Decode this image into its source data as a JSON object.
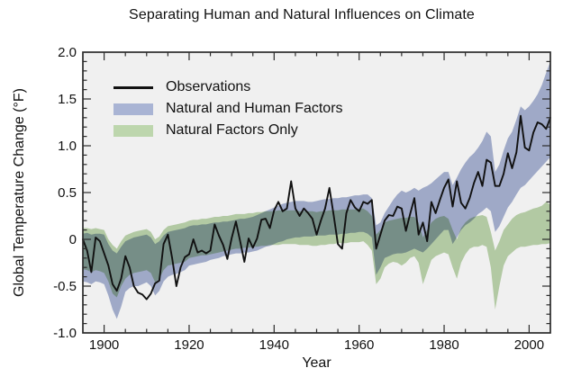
{
  "chart_data": {
    "type": "area",
    "title": "Separating Human and Natural Influences on Climate",
    "xlabel": "Year",
    "ylabel": "Global Temperature Change (°F)",
    "xlim": [
      1895,
      2005
    ],
    "ylim": [
      -1.0,
      2.0
    ],
    "grid": false,
    "legend_position": "upper-left-inside",
    "x_major_ticks": [
      1900,
      1920,
      1940,
      1960,
      1980,
      2000
    ],
    "x_tick_labels": [
      "1900",
      "1920",
      "1940",
      "1960",
      "1980",
      "2000"
    ],
    "x_minor_step": 5,
    "y_major_ticks": [
      2.0,
      1.5,
      1.0,
      0.5,
      0,
      -0.5,
      -1.0
    ],
    "y_tick_labels": [
      "2.0",
      "1.5",
      "1.0",
      "0.5",
      "0",
      "-0.5",
      "-1.0"
    ],
    "y_minor_step": 0.1,
    "colors": {
      "observations": "#111111",
      "natural_human_band": "#a9b4d4",
      "natural_band": "#bdd6ad",
      "plot_background": "#f0f0f0",
      "axis": "#2b2b2b"
    },
    "legend": [
      {
        "label": "Observations",
        "type": "line",
        "swatch_color": "#111111"
      },
      {
        "label": "Natural and Human Factors",
        "type": "band",
        "swatch_color": "#a9b4d4"
      },
      {
        "label": "Natural Factors Only",
        "type": "band",
        "swatch_color": "#bdd6ad"
      }
    ],
    "years": [
      1895,
      1896,
      1897,
      1898,
      1899,
      1900,
      1901,
      1902,
      1903,
      1904,
      1905,
      1906,
      1907,
      1908,
      1909,
      1910,
      1911,
      1912,
      1913,
      1914,
      1915,
      1916,
      1917,
      1918,
      1919,
      1920,
      1921,
      1922,
      1923,
      1924,
      1925,
      1926,
      1927,
      1928,
      1929,
      1930,
      1931,
      1932,
      1933,
      1934,
      1935,
      1936,
      1937,
      1938,
      1939,
      1940,
      1941,
      1942,
      1943,
      1944,
      1945,
      1946,
      1947,
      1948,
      1949,
      1950,
      1951,
      1952,
      1953,
      1954,
      1955,
      1956,
      1957,
      1958,
      1959,
      1960,
      1961,
      1962,
      1963,
      1964,
      1965,
      1966,
      1967,
      1968,
      1969,
      1970,
      1971,
      1972,
      1973,
      1974,
      1975,
      1976,
      1977,
      1978,
      1979,
      1980,
      1981,
      1982,
      1983,
      1984,
      1985,
      1986,
      1987,
      1988,
      1989,
      1990,
      1991,
      1992,
      1993,
      1994,
      1995,
      1996,
      1997,
      1998,
      1999,
      2000,
      2001,
      2002,
      2003,
      2004,
      2005
    ],
    "series": [
      {
        "name": "Observations",
        "type": "line",
        "values": [
          0.0,
          -0.12,
          -0.35,
          0.02,
          -0.02,
          -0.15,
          -0.28,
          -0.48,
          -0.55,
          -0.42,
          -0.18,
          -0.3,
          -0.5,
          -0.57,
          -0.59,
          -0.64,
          -0.58,
          -0.47,
          -0.44,
          -0.05,
          0.05,
          -0.2,
          -0.5,
          -0.3,
          -0.19,
          -0.16,
          0.0,
          -0.14,
          -0.12,
          -0.15,
          -0.12,
          0.16,
          0.04,
          -0.06,
          -0.21,
          0.01,
          0.19,
          -0.02,
          -0.24,
          0.01,
          -0.09,
          0.01,
          0.21,
          0.22,
          0.12,
          0.31,
          0.4,
          0.3,
          0.33,
          0.62,
          0.33,
          0.25,
          0.33,
          0.28,
          0.22,
          0.05,
          0.2,
          0.33,
          0.55,
          0.26,
          -0.05,
          -0.1,
          0.28,
          0.42,
          0.34,
          0.3,
          0.4,
          0.38,
          0.42,
          -0.1,
          0.05,
          0.2,
          0.26,
          0.25,
          0.35,
          0.33,
          0.09,
          0.27,
          0.44,
          0.05,
          0.18,
          -0.02,
          0.4,
          0.28,
          0.42,
          0.55,
          0.64,
          0.35,
          0.62,
          0.39,
          0.33,
          0.44,
          0.6,
          0.72,
          0.57,
          0.85,
          0.82,
          0.57,
          0.57,
          0.7,
          0.92,
          0.76,
          0.93,
          1.32,
          0.98,
          0.95,
          1.14,
          1.25,
          1.23,
          1.18,
          1.3
        ]
      },
      {
        "name": "Natural and Human Factors",
        "type": "band",
        "lower": [
          -0.45,
          -0.46,
          -0.48,
          -0.45,
          -0.46,
          -0.48,
          -0.6,
          -0.75,
          -0.85,
          -0.72,
          -0.56,
          -0.52,
          -0.5,
          -0.5,
          -0.48,
          -0.46,
          -0.5,
          -0.6,
          -0.55,
          -0.45,
          -0.4,
          -0.38,
          -0.37,
          -0.35,
          -0.33,
          -0.28,
          -0.27,
          -0.26,
          -0.25,
          -0.24,
          -0.22,
          -0.21,
          -0.2,
          -0.18,
          -0.17,
          -0.16,
          -0.15,
          -0.15,
          -0.14,
          -0.14,
          -0.13,
          -0.12,
          -0.1,
          -0.08,
          -0.07,
          -0.05,
          -0.03,
          -0.02,
          0.0,
          0.01,
          0.02,
          0.02,
          0.03,
          0.03,
          0.03,
          0.04,
          0.04,
          0.04,
          0.05,
          0.05,
          0.05,
          0.06,
          0.06,
          0.07,
          0.07,
          0.08,
          0.08,
          0.06,
          0.02,
          -0.38,
          -0.3,
          -0.2,
          -0.18,
          -0.16,
          -0.15,
          -0.15,
          -0.14,
          -0.12,
          -0.1,
          -0.12,
          -0.14,
          -0.1,
          -0.05,
          0.0,
          0.05,
          0.1,
          0.1,
          -0.05,
          0.02,
          0.1,
          0.15,
          0.18,
          0.22,
          0.27,
          0.3,
          0.34,
          0.3,
          0.08,
          0.14,
          0.24,
          0.34,
          0.4,
          0.48,
          0.55,
          0.58,
          0.63,
          0.68,
          0.73,
          0.78,
          0.83,
          0.88
        ],
        "upper": [
          0.06,
          0.07,
          0.05,
          0.06,
          0.06,
          0.05,
          -0.05,
          -0.12,
          -0.15,
          -0.08,
          -0.02,
          0.0,
          0.02,
          0.03,
          0.04,
          0.05,
          0.02,
          -0.05,
          -0.02,
          0.04,
          0.08,
          0.09,
          0.1,
          0.11,
          0.12,
          0.14,
          0.15,
          0.15,
          0.16,
          0.16,
          0.17,
          0.18,
          0.18,
          0.19,
          0.19,
          0.2,
          0.21,
          0.22,
          0.22,
          0.23,
          0.24,
          0.26,
          0.28,
          0.3,
          0.32,
          0.34,
          0.36,
          0.38,
          0.39,
          0.4,
          0.41,
          0.41,
          0.41,
          0.4,
          0.4,
          0.41,
          0.42,
          0.43,
          0.43,
          0.44,
          0.44,
          0.45,
          0.45,
          0.46,
          0.47,
          0.47,
          0.48,
          0.48,
          0.44,
          0.15,
          0.18,
          0.28,
          0.35,
          0.42,
          0.48,
          0.52,
          0.5,
          0.52,
          0.55,
          0.52,
          0.55,
          0.57,
          0.6,
          0.64,
          0.68,
          0.72,
          0.72,
          0.58,
          0.66,
          0.75,
          0.82,
          0.88,
          0.92,
          0.98,
          1.05,
          1.15,
          1.1,
          0.72,
          0.8,
          0.95,
          1.08,
          1.15,
          1.28,
          1.42,
          1.38,
          1.42,
          1.48,
          1.55,
          1.65,
          1.78,
          1.9
        ]
      },
      {
        "name": "Natural Factors Only",
        "type": "band",
        "lower": [
          -0.32,
          -0.33,
          -0.35,
          -0.33,
          -0.34,
          -0.36,
          -0.45,
          -0.58,
          -0.62,
          -0.5,
          -0.42,
          -0.38,
          -0.36,
          -0.35,
          -0.34,
          -0.33,
          -0.36,
          -0.46,
          -0.42,
          -0.33,
          -0.28,
          -0.27,
          -0.26,
          -0.25,
          -0.24,
          -0.2,
          -0.19,
          -0.18,
          -0.17,
          -0.17,
          -0.16,
          -0.15,
          -0.14,
          -0.13,
          -0.12,
          -0.11,
          -0.1,
          -0.1,
          -0.09,
          -0.09,
          -0.08,
          -0.08,
          -0.07,
          -0.07,
          -0.06,
          -0.06,
          -0.06,
          -0.05,
          -0.05,
          -0.05,
          -0.05,
          -0.06,
          -0.06,
          -0.06,
          -0.07,
          -0.07,
          -0.06,
          -0.06,
          -0.05,
          -0.05,
          -0.04,
          -0.04,
          -0.04,
          -0.03,
          -0.03,
          -0.03,
          -0.02,
          -0.06,
          -0.12,
          -0.48,
          -0.42,
          -0.3,
          -0.26,
          -0.24,
          -0.25,
          -0.28,
          -0.25,
          -0.2,
          -0.18,
          -0.25,
          -0.48,
          -0.35,
          -0.22,
          -0.18,
          -0.16,
          -0.14,
          -0.16,
          -0.3,
          -0.42,
          -0.25,
          -0.16,
          -0.1,
          -0.08,
          -0.08,
          -0.06,
          -0.08,
          -0.3,
          -0.75,
          -0.5,
          -0.28,
          -0.18,
          -0.14,
          -0.1,
          -0.08,
          -0.08,
          -0.07,
          -0.06,
          -0.06,
          -0.05,
          -0.05,
          -0.04
        ],
        "upper": [
          0.12,
          0.12,
          0.11,
          0.12,
          0.11,
          0.1,
          0.0,
          -0.06,
          -0.1,
          -0.02,
          0.04,
          0.06,
          0.08,
          0.09,
          0.1,
          0.11,
          0.08,
          0.0,
          0.03,
          0.1,
          0.14,
          0.15,
          0.16,
          0.17,
          0.18,
          0.2,
          0.21,
          0.21,
          0.22,
          0.22,
          0.23,
          0.24,
          0.24,
          0.25,
          0.25,
          0.26,
          0.27,
          0.27,
          0.27,
          0.28,
          0.28,
          0.29,
          0.29,
          0.3,
          0.3,
          0.3,
          0.31,
          0.31,
          0.31,
          0.31,
          0.31,
          0.3,
          0.3,
          0.3,
          0.3,
          0.29,
          0.3,
          0.3,
          0.31,
          0.31,
          0.31,
          0.32,
          0.32,
          0.32,
          0.32,
          0.33,
          0.33,
          0.3,
          0.25,
          0.05,
          0.1,
          0.18,
          0.2,
          0.21,
          0.22,
          0.23,
          0.23,
          0.24,
          0.24,
          0.18,
          0.02,
          0.1,
          0.18,
          0.22,
          0.24,
          0.25,
          0.22,
          0.1,
          0.0,
          0.12,
          0.18,
          0.22,
          0.24,
          0.25,
          0.26,
          0.24,
          0.08,
          -0.12,
          -0.02,
          0.1,
          0.16,
          0.22,
          0.26,
          0.28,
          0.29,
          0.31,
          0.33,
          0.34,
          0.36,
          0.4,
          0.37
        ]
      }
    ]
  }
}
